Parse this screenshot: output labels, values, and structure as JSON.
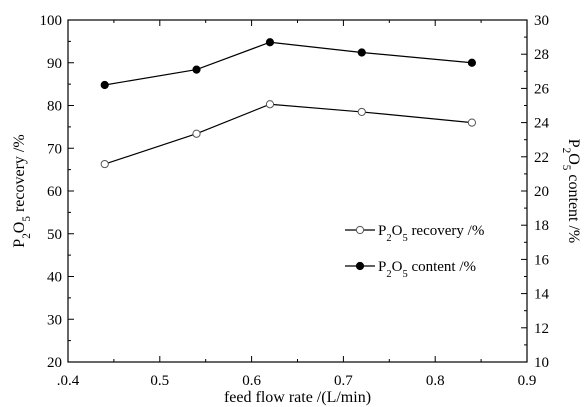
{
  "chart_data": {
    "type": "line",
    "xlabel": "feed flow rate /(L/min)",
    "ylabel_left": "P2O5 recovery /%",
    "ylabel_right": "P2O5 content /%",
    "xlim": [
      0.4,
      0.9
    ],
    "ylim_left": [
      20,
      100
    ],
    "ylim_right": [
      10,
      30
    ],
    "x_ticks": [
      0.4,
      0.5,
      0.6,
      0.7,
      0.8,
      0.9
    ],
    "x_tick_labels": [
      ".0.4",
      "0.5",
      "0.6",
      "0.7",
      "0.8",
      "0.9"
    ],
    "y_left_ticks": [
      20,
      30,
      40,
      50,
      60,
      70,
      80,
      90,
      100
    ],
    "y_right_ticks": [
      10,
      12,
      14,
      16,
      18,
      20,
      22,
      24,
      26,
      28,
      30
    ],
    "grid": false,
    "legend_position": "right-middle",
    "series": [
      {
        "name": "P2O5 recovery /%",
        "axis": "left",
        "marker": "open-circle",
        "x": [
          0.44,
          0.54,
          0.62,
          0.72,
          0.84
        ],
        "values": [
          66.3,
          73.4,
          80.3,
          78.5,
          76.0
        ]
      },
      {
        "name": "P2O5 content /%",
        "axis": "right",
        "marker": "filled-circle",
        "x": [
          0.44,
          0.54,
          0.62,
          0.72,
          0.84
        ],
        "values": [
          26.2,
          27.1,
          28.7,
          28.1,
          27.5
        ]
      }
    ]
  }
}
